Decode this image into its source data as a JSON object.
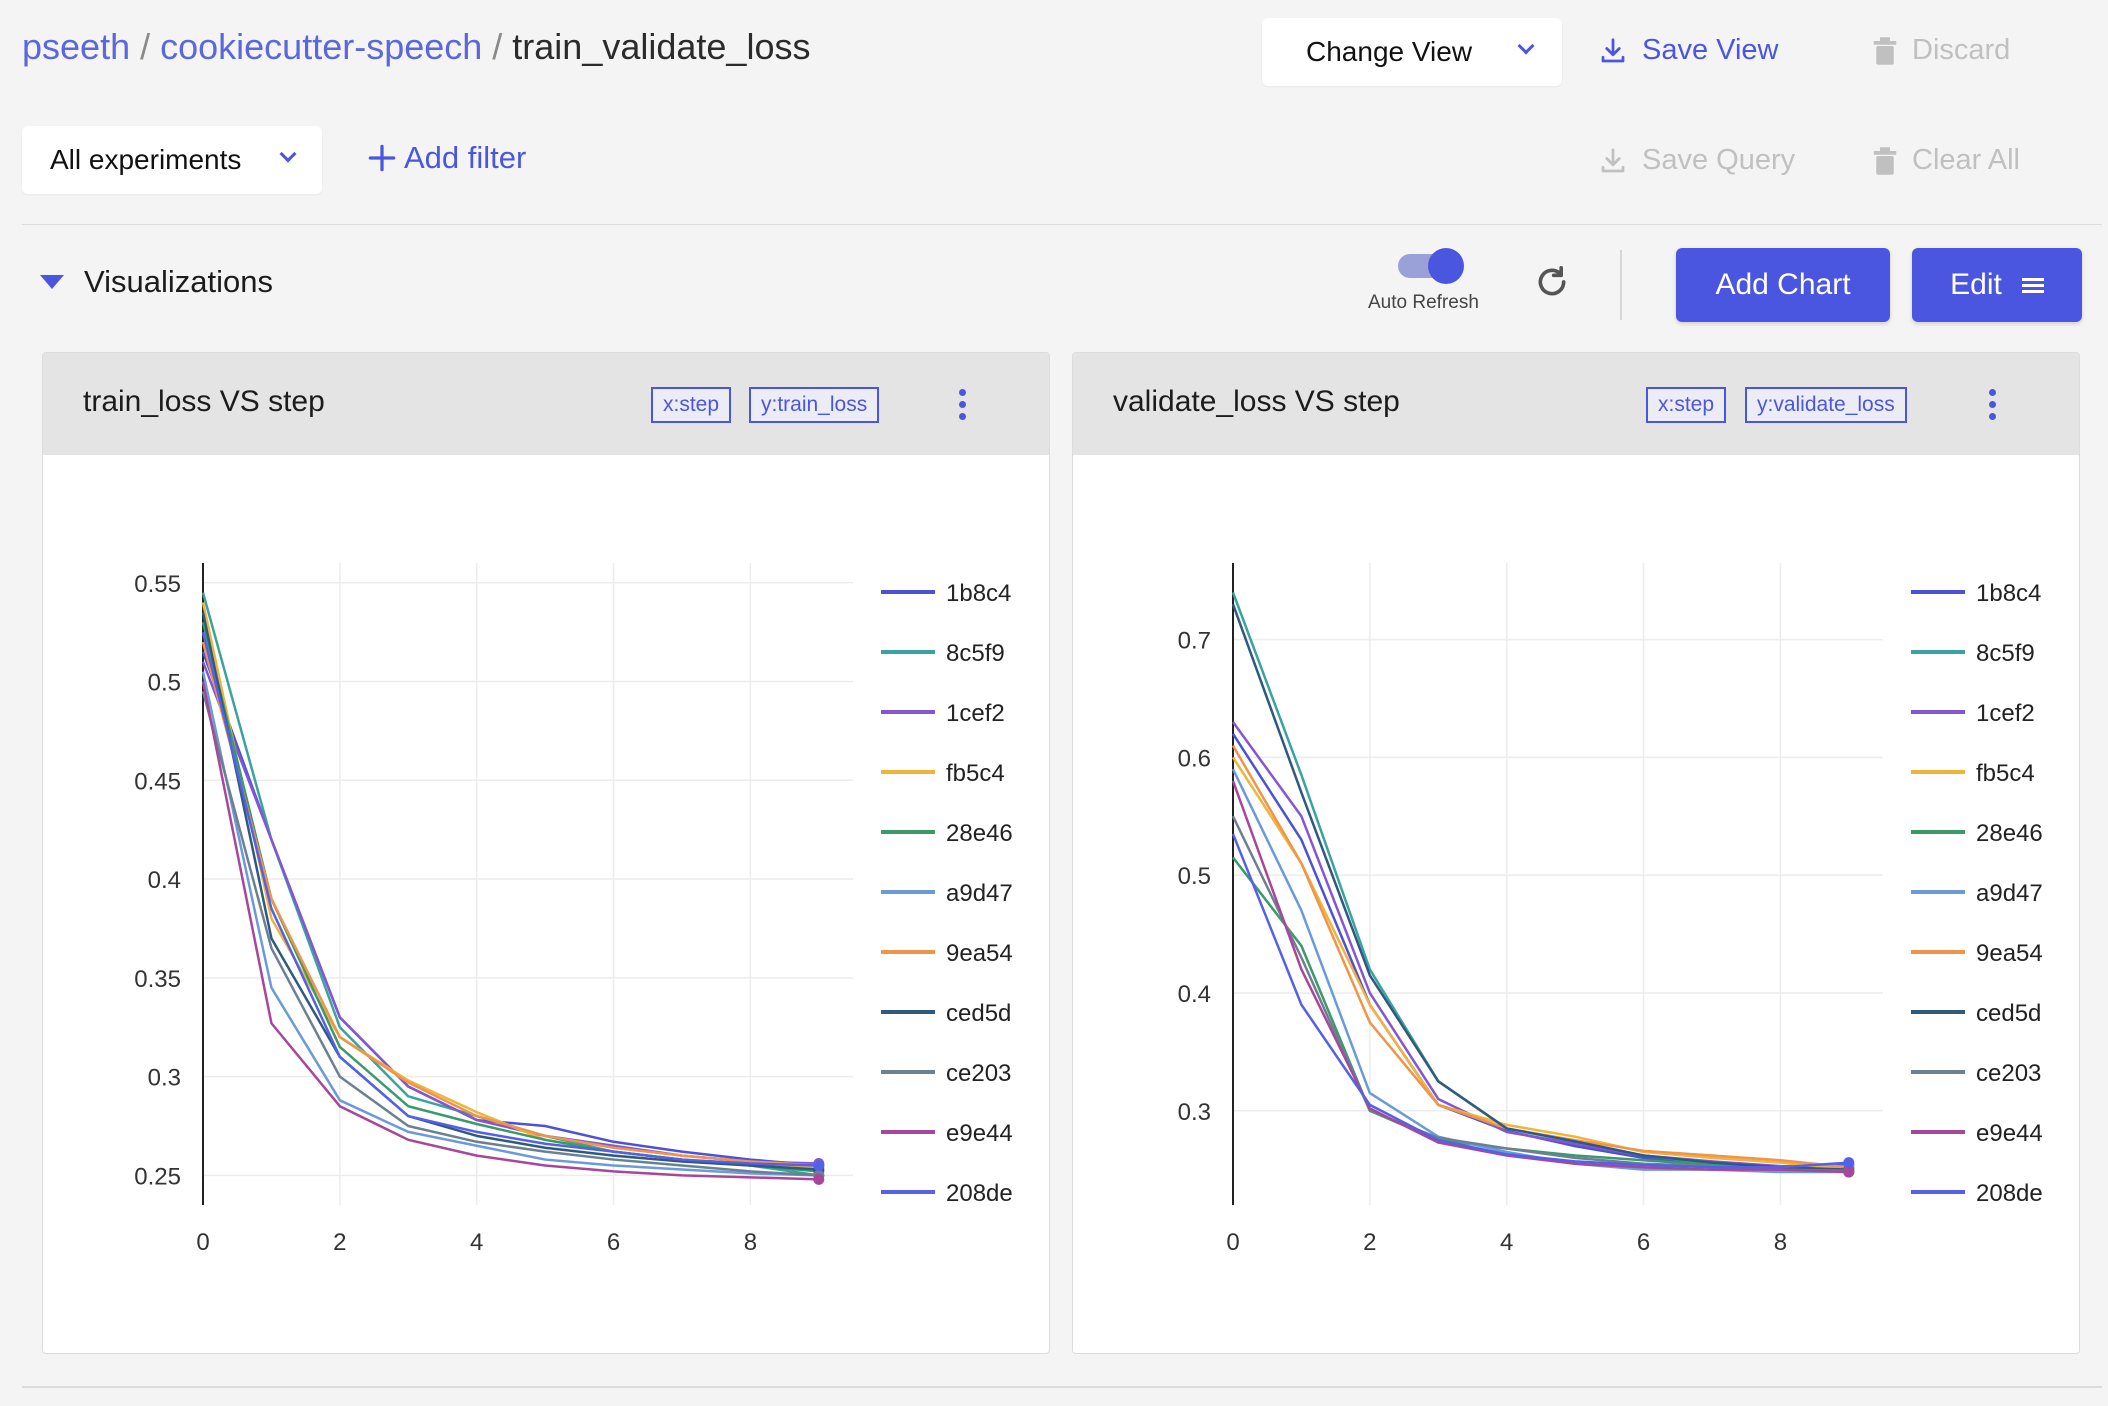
{
  "breadcrumb": {
    "owner": "pseeth",
    "sep1": "/",
    "project": "cookiecutter-speech",
    "sep2": "/",
    "view": "train_validate_loss"
  },
  "header": {
    "change_view": "Change View",
    "save_view": "Save View",
    "discard": "Discard"
  },
  "query": {
    "experiments_select": "All experiments",
    "add_filter": "Add filter",
    "save_query": "Save Query",
    "clear_all": "Clear All"
  },
  "visualizations": {
    "title": "Visualizations",
    "auto_refresh_label": "Auto Refresh",
    "auto_refresh_on": true,
    "add_chart": "Add Chart",
    "edit": "Edit"
  },
  "colors": {
    "accent": "#4b56e0",
    "disabled": "#c0c0c0"
  },
  "legend": [
    "1b8c4",
    "8c5f9",
    "1cef2",
    "fb5c4",
    "28e46",
    "a9d47",
    "9ea54",
    "ced5d",
    "ce203",
    "e9e44",
    "208de"
  ],
  "series_colors": [
    "#4b52d9",
    "#3aa39e",
    "#8556d4",
    "#f0b43c",
    "#3a9a6a",
    "#6a9ad8",
    "#f0944a",
    "#2f5a80",
    "#6b8092",
    "#a8479a",
    "#5560e8"
  ],
  "charts": [
    {
      "title": "train_loss VS step",
      "x_tag": "x:step",
      "y_tag": "y:train_loss",
      "chart_data": {
        "type": "line",
        "xlabel": "",
        "ylabel": "",
        "xlim": [
          0,
          9.5
        ],
        "ylim": [
          0.235,
          0.56
        ],
        "xticks": [
          0,
          2,
          4,
          6,
          8
        ],
        "yticks": [
          0.25,
          0.3,
          0.35,
          0.4,
          0.45,
          0.5,
          0.55
        ],
        "ytick_labels": [
          "0.25",
          "0.3",
          "0.35",
          "0.4",
          "0.45",
          "0.5",
          "0.55"
        ],
        "grid": true,
        "x": [
          0,
          1,
          2,
          3,
          4,
          5,
          6,
          7,
          8,
          9
        ],
        "series": [
          {
            "name": "1b8c4",
            "values": [
              0.515,
              0.42,
              0.33,
              0.295,
              0.278,
              0.275,
              0.267,
              0.262,
              0.258,
              0.255
            ]
          },
          {
            "name": "8c5f9",
            "values": [
              0.545,
              0.42,
              0.325,
              0.29,
              0.28,
              0.27,
              0.262,
              0.258,
              0.255,
              0.25
            ]
          },
          {
            "name": "1cef2",
            "values": [
              0.51,
              0.42,
              0.33,
              0.295,
              0.278,
              0.27,
              0.265,
              0.26,
              0.257,
              0.256
            ]
          },
          {
            "name": "fb5c4",
            "values": [
              0.54,
              0.38,
              0.32,
              0.298,
              0.282,
              0.268,
              0.262,
              0.258,
              0.255,
              0.254
            ]
          },
          {
            "name": "28e46",
            "values": [
              0.53,
              0.39,
              0.315,
              0.285,
              0.276,
              0.268,
              0.262,
              0.258,
              0.255,
              0.252
            ]
          },
          {
            "name": "a9d47",
            "values": [
              0.505,
              0.345,
              0.288,
              0.272,
              0.265,
              0.258,
              0.255,
              0.253,
              0.251,
              0.25
            ]
          },
          {
            "name": "9ea54",
            "values": [
              0.52,
              0.39,
              0.32,
              0.297,
              0.28,
              0.27,
              0.264,
              0.26,
              0.257,
              0.255
            ]
          },
          {
            "name": "ced5d",
            "values": [
              0.535,
              0.37,
              0.31,
              0.28,
              0.27,
              0.264,
              0.26,
              0.257,
              0.255,
              0.253
            ]
          },
          {
            "name": "ce203",
            "values": [
              0.495,
              0.365,
              0.3,
              0.275,
              0.267,
              0.262,
              0.258,
              0.255,
              0.252,
              0.25
            ]
          },
          {
            "name": "e9e44",
            "values": [
              0.5,
              0.327,
              0.285,
              0.268,
              0.26,
              0.255,
              0.252,
              0.25,
              0.249,
              0.248
            ]
          },
          {
            "name": "208de",
            "values": [
              0.525,
              0.385,
              0.31,
              0.28,
              0.272,
              0.266,
              0.262,
              0.258,
              0.256,
              0.255
            ]
          }
        ]
      }
    },
    {
      "title": "validate_loss VS step",
      "x_tag": "x:step",
      "y_tag": "y:validate_loss",
      "chart_data": {
        "type": "line",
        "xlabel": "",
        "ylabel": "",
        "xlim": [
          0,
          9.5
        ],
        "ylim": [
          0.22,
          0.765
        ],
        "xticks": [
          0,
          2,
          4,
          6,
          8
        ],
        "yticks": [
          0.3,
          0.4,
          0.5,
          0.6,
          0.7
        ],
        "ytick_labels": [
          "0.3",
          "0.4",
          "0.5",
          "0.6",
          "0.7"
        ],
        "grid": true,
        "x": [
          0,
          1,
          2,
          3,
          4,
          5,
          6,
          7,
          8,
          9
        ],
        "series": [
          {
            "name": "1b8c4",
            "values": [
              0.62,
              0.53,
              0.39,
              0.305,
              0.283,
              0.27,
              0.26,
              0.255,
              0.25,
              0.254
            ]
          },
          {
            "name": "8c5f9",
            "values": [
              0.74,
              0.585,
              0.42,
              0.325,
              0.285,
              0.274,
              0.262,
              0.255,
              0.25,
              0.248
            ]
          },
          {
            "name": "1cef2",
            "values": [
              0.63,
              0.55,
              0.4,
              0.31,
              0.282,
              0.272,
              0.262,
              0.257,
              0.253,
              0.252
            ]
          },
          {
            "name": "fb5c4",
            "values": [
              0.6,
              0.51,
              0.39,
              0.305,
              0.288,
              0.278,
              0.265,
              0.26,
              0.256,
              0.25
            ]
          },
          {
            "name": "28e46",
            "values": [
              0.515,
              0.44,
              0.3,
              0.275,
              0.268,
              0.262,
              0.258,
              0.254,
              0.25,
              0.248
            ]
          },
          {
            "name": "a9d47",
            "values": [
              0.59,
              0.47,
              0.315,
              0.278,
              0.265,
              0.255,
              0.25,
              0.25,
              0.248,
              0.248
            ]
          },
          {
            "name": "9ea54",
            "values": [
              0.61,
              0.51,
              0.375,
              0.305,
              0.285,
              0.275,
              0.266,
              0.262,
              0.258,
              0.252
            ]
          },
          {
            "name": "ced5d",
            "values": [
              0.73,
              0.57,
              0.415,
              0.325,
              0.285,
              0.274,
              0.262,
              0.256,
              0.252,
              0.25
            ]
          },
          {
            "name": "ce203",
            "values": [
              0.55,
              0.43,
              0.3,
              0.277,
              0.268,
              0.26,
              0.255,
              0.253,
              0.25,
              0.249
            ]
          },
          {
            "name": "e9e44",
            "values": [
              0.58,
              0.42,
              0.302,
              0.273,
              0.262,
              0.255,
              0.252,
              0.25,
              0.25,
              0.248
            ]
          },
          {
            "name": "208de",
            "values": [
              0.535,
              0.39,
              0.305,
              0.275,
              0.263,
              0.257,
              0.254,
              0.252,
              0.252,
              0.256
            ]
          }
        ]
      }
    }
  ]
}
